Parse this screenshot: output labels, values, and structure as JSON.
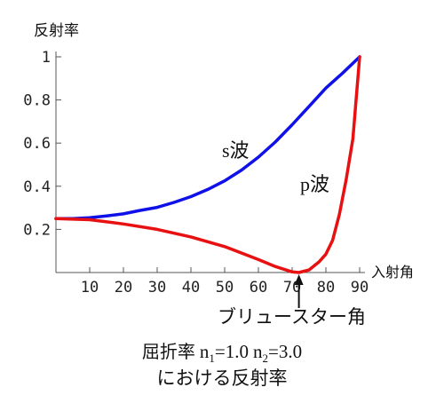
{
  "chart_data": {
    "type": "line",
    "title": "",
    "ylabel": "反射率",
    "xlabel": "入射角",
    "xlim": [
      0,
      90
    ],
    "ylim": [
      0,
      1
    ],
    "x_ticks": [
      10,
      20,
      30,
      40,
      50,
      60,
      70,
      80,
      90
    ],
    "y_ticks": [
      {
        "value": 0.2,
        "label": "0.2"
      },
      {
        "value": 0.4,
        "label": "0.4"
      },
      {
        "value": 0.6,
        "label": "0.6"
      },
      {
        "value": 0.8,
        "label": "0.8"
      },
      {
        "value": 1.0,
        "label": "1"
      }
    ],
    "grid": false,
    "series": [
      {
        "name": "s波",
        "color": "#1010e8",
        "x": [
          0,
          5,
          10,
          15,
          20,
          25,
          30,
          35,
          40,
          45,
          50,
          55,
          60,
          65,
          70,
          75,
          80,
          85,
          90
        ],
        "y": [
          0.25,
          0.25,
          0.254,
          0.262,
          0.272,
          0.288,
          0.302,
          0.325,
          0.352,
          0.385,
          0.425,
          0.475,
          0.535,
          0.605,
          0.685,
          0.77,
          0.855,
          0.925,
          1.0
        ]
      },
      {
        "name": "p波",
        "color": "#e81010",
        "x": [
          0,
          10,
          20,
          30,
          40,
          50,
          60,
          65,
          70,
          72,
          75,
          78,
          80,
          82,
          84,
          86,
          88,
          90
        ],
        "y": [
          0.25,
          0.245,
          0.225,
          0.2,
          0.165,
          0.12,
          0.06,
          0.028,
          0.003,
          0.0,
          0.012,
          0.05,
          0.085,
          0.15,
          0.27,
          0.43,
          0.62,
          1.0
        ]
      }
    ],
    "annotations": {
      "s_label": "s波",
      "p_label": "p波",
      "brewster_label": "ブリュースター角",
      "brewster_angle": 72
    }
  },
  "caption": {
    "line1_text": "屈折率",
    "n1_symbol": "n",
    "n1_sub": "1",
    "n1_value": "=1.0",
    "n2_symbol": "n",
    "n2_sub": "2",
    "n2_value": "=3.0",
    "line2": "における反射率"
  }
}
